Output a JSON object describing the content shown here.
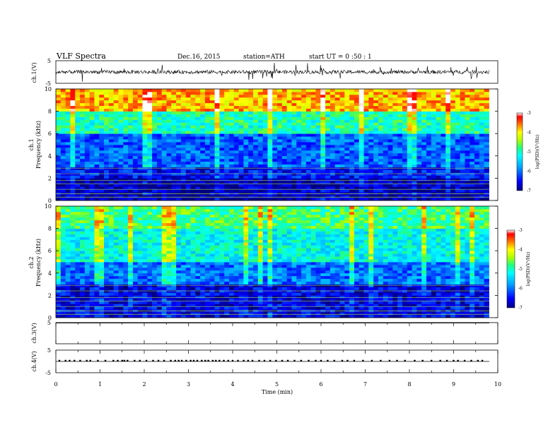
{
  "header": {
    "title": "VLF  Spectra",
    "date": "Dec.16, 2015",
    "station": "station=ATH",
    "start": "start  UT  =   0  :50 : 1"
  },
  "chart_data": [
    {
      "type": "line",
      "panel": "ch1-waveform",
      "ylabel": "ch.1(V)",
      "ylim": [
        -5,
        5
      ],
      "yticks": [
        "5",
        "-5"
      ],
      "xlim": [
        0,
        10
      ],
      "data_end_min": 9.8,
      "baseline": 0
    },
    {
      "type": "heatmap",
      "panel": "ch1-spectrogram",
      "ylabel_top": "ch.1",
      "ylabel": "Frequency  (kHz)",
      "ylim": [
        0,
        10
      ],
      "yticks": [
        "0",
        "2",
        "4",
        "6",
        "8",
        "10"
      ],
      "xlim": [
        0,
        10
      ],
      "colorbar": {
        "label": "log(PSD)(V²/Hz)",
        "range": [
          -7,
          -3
        ],
        "ticks": [
          "-3",
          "-4",
          "-5",
          "-6",
          "-7"
        ]
      },
      "approx_level_by_freq_khz": {
        "0-2": -6.8,
        "2-3": -6.5,
        "3-6": -6.1,
        "6-8": -5.0,
        "8-10": -3.8
      }
    },
    {
      "type": "heatmap",
      "panel": "ch2-spectrogram",
      "ylabel_top": "ch.2",
      "ylabel": "Frequency  (kHz)",
      "ylim": [
        0,
        10
      ],
      "yticks": [
        "0",
        "2",
        "4",
        "6",
        "8",
        "10"
      ],
      "xlim": [
        0,
        10
      ],
      "colorbar": {
        "label": "log(PSD)(V²/Hz)",
        "range": [
          -7,
          -3
        ],
        "ticks": [
          "-3",
          "-4",
          "-5",
          "-6",
          "-7"
        ]
      },
      "approx_level_by_freq_khz": {
        "0-3": -6.6,
        "3-5": -6.0,
        "5-8": -5.2,
        "8-10": -4.8
      }
    },
    {
      "type": "line",
      "panel": "ch3-waveform",
      "ylabel": "ch.3(V)",
      "ylim": [
        -5,
        5
      ],
      "yticks": [
        "5"
      ],
      "xlim": [
        0,
        10
      ],
      "baseline": 0
    },
    {
      "type": "line",
      "panel": "ch4-waveform",
      "ylabel": "ch.4(V)",
      "ylim": [
        -5,
        5
      ],
      "yticks": [
        "5",
        "-5"
      ],
      "xlim": [
        0,
        10
      ],
      "xlabel": "Time  (min)",
      "xticks": [
        "0",
        "1",
        "2",
        "3",
        "4",
        "5",
        "6",
        "7",
        "8",
        "9",
        "10"
      ],
      "baseline": 0,
      "pulse_times_min": [
        0.08,
        0.22,
        0.31,
        0.42,
        0.55,
        0.7,
        0.78,
        0.95,
        1.12,
        1.3,
        1.4,
        1.5,
        1.55,
        1.62,
        1.78,
        1.9,
        2.05,
        2.2,
        2.32,
        2.45,
        2.6,
        2.7,
        2.78,
        2.85,
        2.95,
        3.05,
        3.12,
        3.2,
        3.3,
        3.38,
        3.45,
        3.55,
        3.62,
        3.7,
        3.8,
        3.9,
        4.0,
        4.12,
        4.25,
        4.35,
        4.45,
        4.6,
        4.72,
        4.85,
        4.98,
        5.12,
        5.25,
        5.4,
        5.55,
        5.72,
        5.88,
        6.0,
        6.15,
        6.3,
        6.48,
        6.6,
        6.75,
        6.95,
        7.15,
        7.35,
        7.55,
        7.72,
        7.9,
        8.12,
        8.3,
        8.5,
        8.7,
        8.85,
        9.0,
        9.1,
        9.25,
        9.4,
        9.55,
        9.65
      ]
    }
  ]
}
